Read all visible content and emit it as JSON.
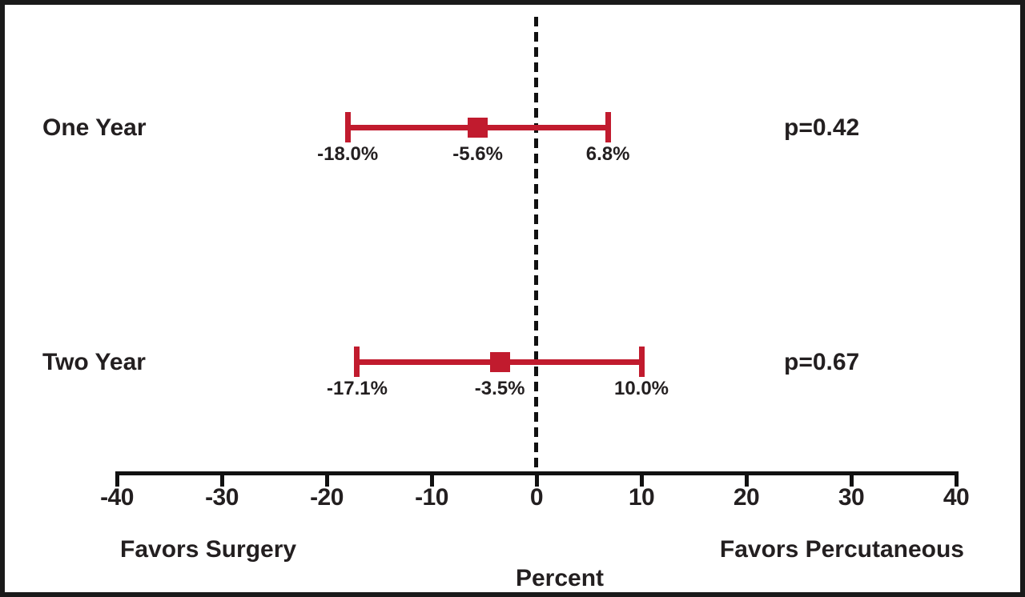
{
  "figure": {
    "background": "#ffffff",
    "border_color": "#1a1a1a"
  },
  "chart_data": {
    "type": "scatter",
    "subtype": "forest-plot",
    "xlabel": "Percent",
    "xlim": [
      -40,
      40
    ],
    "x_ticks": [
      -40,
      -30,
      -20,
      -10,
      0,
      10,
      20,
      30,
      40
    ],
    "x_tick_labels": [
      "-40",
      "-30",
      "-20",
      "-10",
      "0",
      "10",
      "20",
      "30",
      "40"
    ],
    "reference_line_x": 0,
    "grid": false,
    "legend": "none",
    "marker": "square",
    "colors": {
      "marker": "#C11B2E",
      "ci": "#C11B2E",
      "axis": "#111111",
      "text": "#231F20"
    },
    "annotations": {
      "left": "Favors Surgery",
      "right": "Favors Percutaneous"
    },
    "rows": [
      {
        "label": "One Year",
        "estimate": -5.6,
        "ci_low": -18.0,
        "ci_high": 6.8,
        "estimate_label": "-5.6%",
        "ci_low_label": "-18.0%",
        "ci_high_label": "6.8%",
        "p_label": "p=0.42"
      },
      {
        "label": "Two Year",
        "estimate": -3.5,
        "ci_low": -17.1,
        "ci_high": 10.0,
        "estimate_label": "-3.5%",
        "ci_low_label": "-17.1%",
        "ci_high_label": "10.0%",
        "p_label": "p=0.67"
      }
    ]
  }
}
